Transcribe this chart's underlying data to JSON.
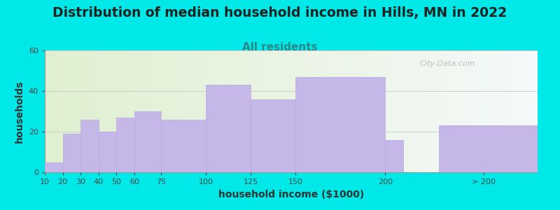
{
  "title": "Distribution of median household income in Hills, MN in 2022",
  "subtitle": "All residents",
  "xlabel": "household income ($1000)",
  "ylabel": "households",
  "bar_labels": [
    "10",
    "20",
    "30",
    "40",
    "50",
    "60",
    "75",
    "100",
    "125",
    "150",
    "200",
    "> 200"
  ],
  "bar_heights": [
    5,
    19,
    26,
    20,
    27,
    30,
    26,
    43,
    36,
    47,
    16,
    23
  ],
  "bar_lefts": [
    10,
    20,
    30,
    40,
    50,
    60,
    75,
    100,
    125,
    150,
    200,
    230
  ],
  "bar_widths": [
    10,
    10,
    10,
    10,
    10,
    15,
    25,
    25,
    25,
    50,
    10,
    55
  ],
  "bar_color": "#c5b8e8",
  "bar_edgecolor": "#b8aadf",
  "background_outer": "#00e8e8",
  "ylim": [
    0,
    60
  ],
  "yticks": [
    0,
    20,
    40,
    60
  ],
  "title_fontsize": 13.5,
  "subtitle_fontsize": 11,
  "subtitle_color": "#2a8a8a",
  "axis_label_fontsize": 10,
  "tick_fontsize": 8,
  "watermark_text": "City-Data.com",
  "xtick_positions": [
    10,
    20,
    30,
    40,
    50,
    60,
    75,
    100,
    125,
    150,
    200,
    255
  ]
}
